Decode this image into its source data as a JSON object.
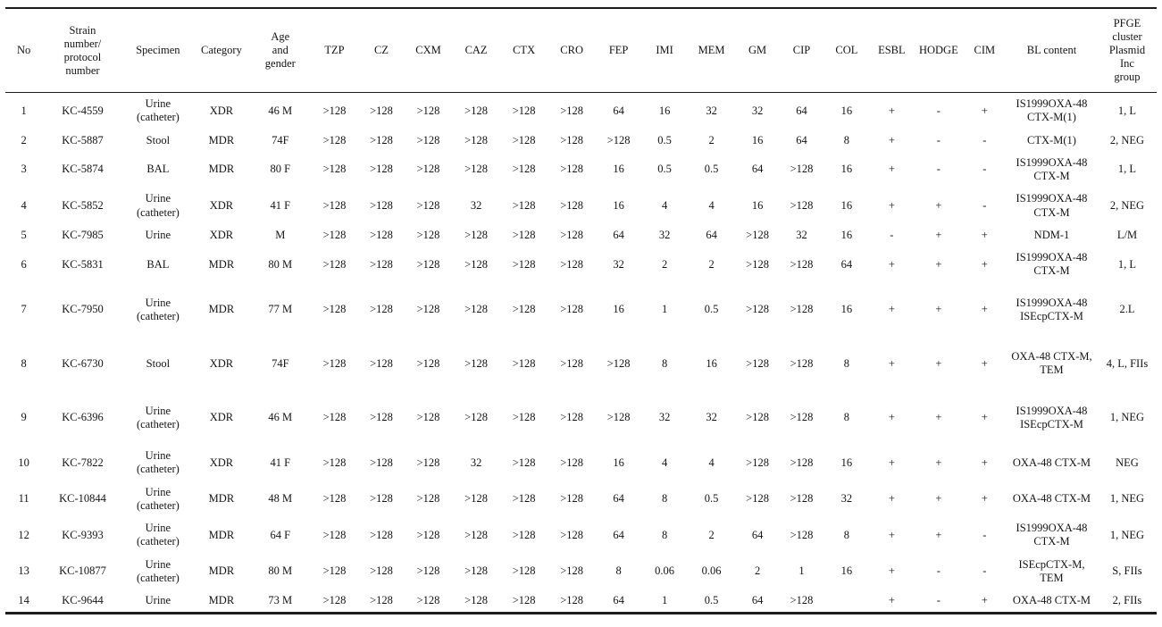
{
  "table": {
    "headers": [
      "No",
      "Strain\nnumber/\nprotocol\nnumber",
      "Specimen",
      "Category",
      "Age\nand\ngender",
      "TZP",
      "CZ",
      "CXM",
      "CAZ",
      "CTX",
      "CRO",
      "FEP",
      "IMI",
      "MEM",
      "GM",
      "CIP",
      "COL",
      "ESBL",
      "HODGE",
      "CIM",
      "BL content",
      "PFGE\ncluster\nPlasmid\nInc\ngroup"
    ],
    "rows": [
      [
        "1",
        "KC-4559",
        "Urine (catheter)",
        "XDR",
        "46 M",
        ">128",
        ">128",
        ">128",
        ">128",
        ">128",
        ">128",
        "64",
        "16",
        "32",
        "32",
        "64",
        "16",
        "+",
        "-",
        "+",
        "IS1999OXA-48 CTX-M(1)",
        "1, L"
      ],
      [
        "2",
        "KC-5887",
        "Stool",
        "MDR",
        "74F",
        ">128",
        ">128",
        ">128",
        ">128",
        ">128",
        ">128",
        ">128",
        "0.5",
        "2",
        "16",
        "64",
        "8",
        "+",
        "-",
        "-",
        "CTX-M(1)",
        "2, NEG"
      ],
      [
        "3",
        "KC-5874",
        "BAL",
        "MDR",
        "80 F",
        ">128",
        ">128",
        ">128",
        ">128",
        ">128",
        ">128",
        "16",
        "0.5",
        "0.5",
        "64",
        ">128",
        "16",
        "+",
        "-",
        "-",
        "IS1999OXA-48 CTX-M",
        "1, L"
      ],
      [
        "4",
        "KC-5852",
        "Urine (catheter)",
        "XDR",
        "41 F",
        ">128",
        ">128",
        ">128",
        "32",
        ">128",
        ">128",
        "16",
        "4",
        "4",
        "16",
        ">128",
        "16",
        "+",
        "+",
        "-",
        "IS1999OXA-48 CTX-M",
        "2, NEG"
      ],
      [
        "5",
        "KC-7985",
        "Urine",
        "XDR",
        "M",
        ">128",
        ">128",
        ">128",
        ">128",
        ">128",
        ">128",
        "64",
        "32",
        "64",
        ">128",
        "32",
        "16",
        "-",
        "+",
        "+",
        "NDM-1",
        "L/M"
      ],
      [
        "6",
        "KC-5831",
        "BAL",
        "MDR",
        "80 M",
        ">128",
        ">128",
        ">128",
        ">128",
        ">128",
        ">128",
        "32",
        "2",
        "2",
        ">128",
        ">128",
        "64",
        "+",
        "+",
        "+",
        "IS1999OXA-48 CTX-M",
        "1, L"
      ],
      [
        "7",
        "KC-7950",
        "Urine (catheter)",
        "MDR",
        "77 M",
        ">128",
        ">128",
        ">128",
        ">128",
        ">128",
        ">128",
        "16",
        "1",
        "0.5",
        ">128",
        ">128",
        "16",
        "+",
        "+",
        "+",
        "IS1999OXA-48 ISEcpCTX-M",
        "2.L"
      ],
      [
        "8",
        "KC-6730",
        "Stool",
        "XDR",
        "74F",
        ">128",
        ">128",
        ">128",
        ">128",
        ">128",
        ">128",
        ">128",
        "8",
        "16",
        ">128",
        ">128",
        "8",
        "+",
        "+",
        "+",
        "OXA-48 CTX-M, TEM",
        "4, L, FIIs"
      ],
      [
        "9",
        "KC-6396",
        "Urine (catheter)",
        "XDR",
        "46 M",
        ">128",
        ">128",
        ">128",
        ">128",
        ">128",
        ">128",
        ">128",
        "32",
        "32",
        ">128",
        ">128",
        "8",
        "+",
        "+",
        "+",
        "IS1999OXA-48 ISEcpCTX-M",
        "1, NEG"
      ],
      [
        "10",
        "KC-7822",
        "Urine (catheter)",
        "XDR",
        "41 F",
        ">128",
        ">128",
        ">128",
        "32",
        ">128",
        ">128",
        "16",
        "4",
        "4",
        ">128",
        ">128",
        "16",
        "+",
        "+",
        "+",
        "OXA-48 CTX-M",
        "NEG"
      ],
      [
        "11",
        "KC-10844",
        "Urine (catheter)",
        "MDR",
        "48 M",
        ">128",
        ">128",
        ">128",
        ">128",
        ">128",
        ">128",
        "64",
        "8",
        "0.5",
        ">128",
        ">128",
        "32",
        "+",
        "+",
        "+",
        "OXA-48 CTX-M",
        "1, NEG"
      ],
      [
        "12",
        "KC-9393",
        "Urine (catheter)",
        "MDR",
        "64 F",
        ">128",
        ">128",
        ">128",
        ">128",
        ">128",
        ">128",
        "64",
        "8",
        "2",
        "64",
        ">128",
        "8",
        "+",
        "+",
        "-",
        "IS1999OXA-48 CTX-M",
        "1, NEG"
      ],
      [
        "13",
        "KC-10877",
        "Urine (catheter)",
        "MDR",
        "80 M",
        ">128",
        ">128",
        ">128",
        ">128",
        ">128",
        ">128",
        "8",
        "0.06",
        "0.06",
        "2",
        "1",
        "16",
        "+",
        "-",
        "-",
        "ISEcpCTX-M, TEM",
        "S, FIIs"
      ],
      [
        "14",
        "KC-9644",
        "Urine",
        "MDR",
        "73 M",
        ">128",
        ">128",
        ">128",
        ">128",
        ">128",
        ">128",
        "64",
        "1",
        "0.5",
        "64",
        ">128",
        "",
        "+",
        "-",
        "+",
        "OXA-48 CTX-M",
        "2, FIIs"
      ]
    ]
  }
}
